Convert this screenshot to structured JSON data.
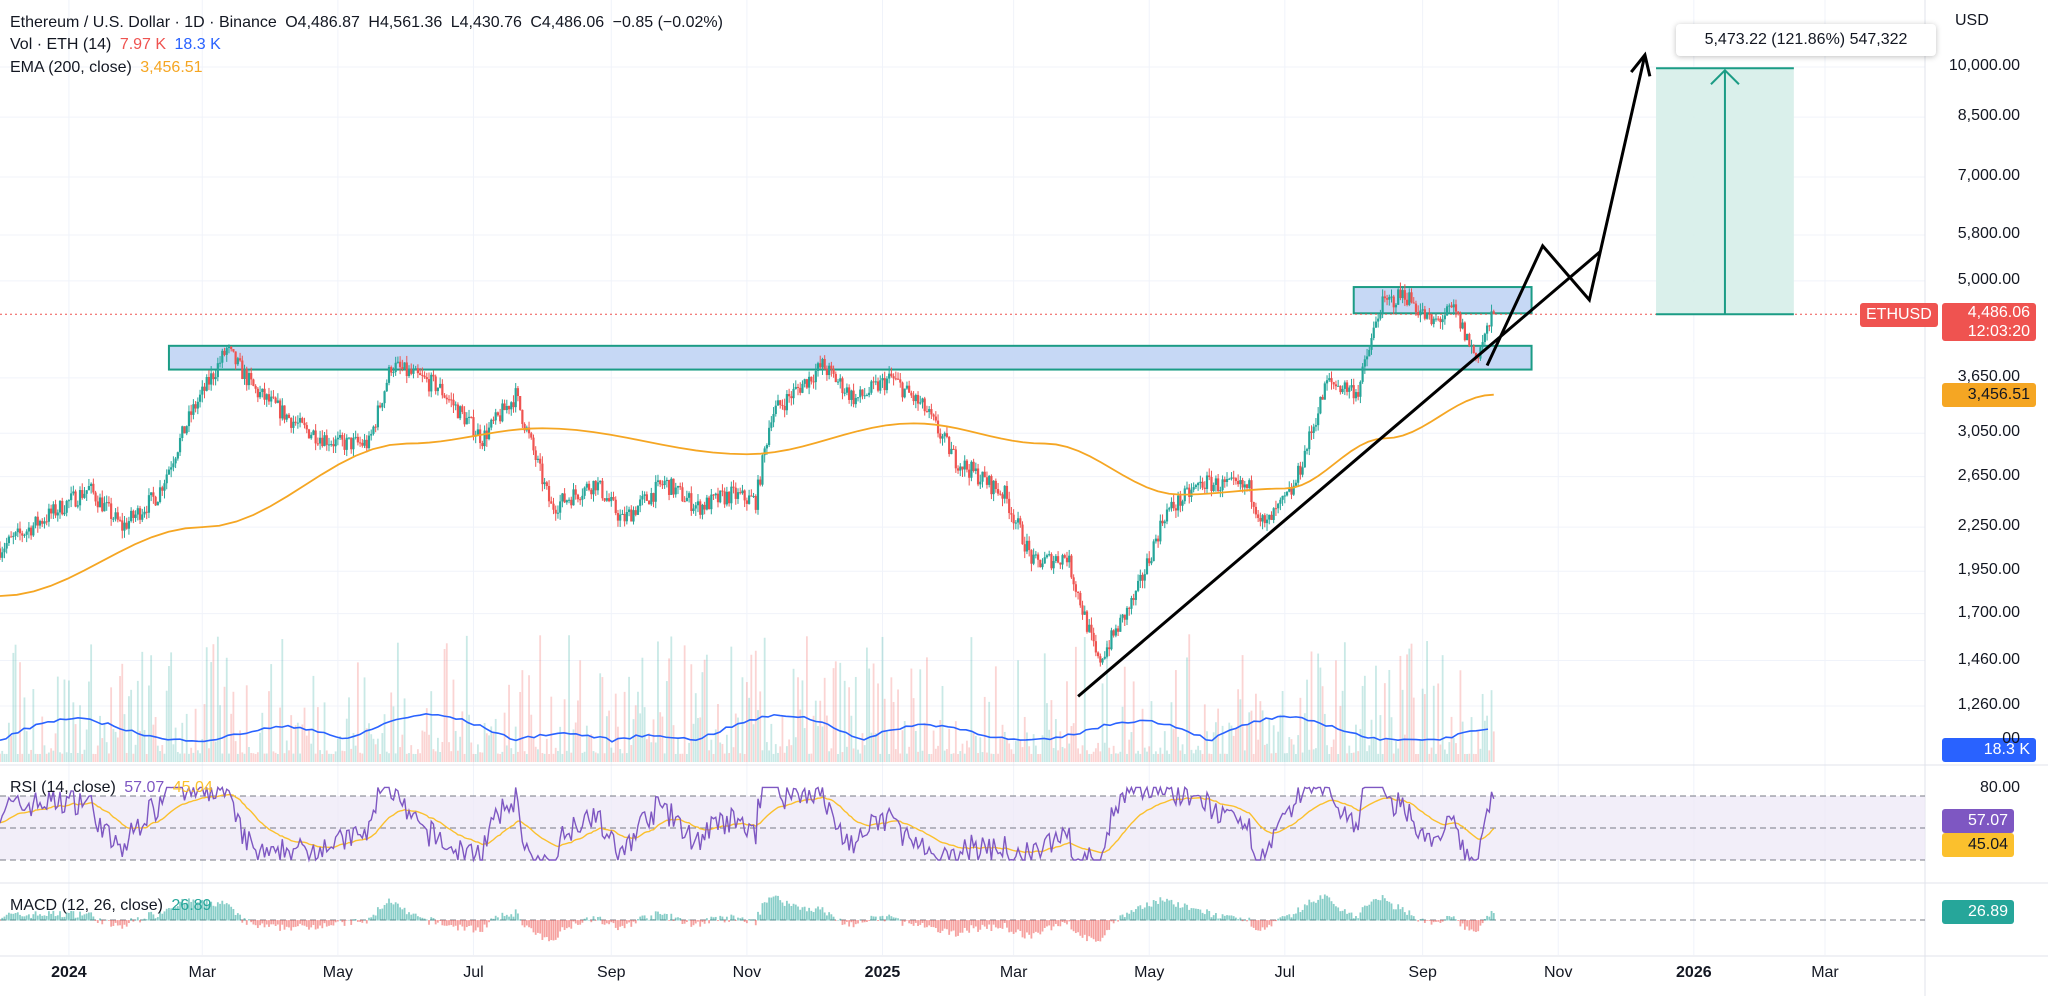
{
  "header": {
    "symbol": "Ethereum / U.S. Dollar · 1D · Binance",
    "open": "O4,486.87",
    "high": "H4,561.36",
    "low": "L4,430.76",
    "close": "C4,486.06",
    "change": "−0.85 (−0.02%)"
  },
  "volume_legend": {
    "label": "Vol · ETH (14)",
    "v1": "7.97 K",
    "v2": "18.3 K"
  },
  "ema_legend": {
    "label": "EMA (200, close)",
    "value": "3,456.51"
  },
  "rsi_legend": {
    "label": "RSI (14, close)",
    "v1": "57.07",
    "v2": "45.04"
  },
  "macd_legend": {
    "label": "MACD (12, 26, close)",
    "value": "26.89"
  },
  "currency": "USD",
  "price_axis": [
    "10,000.00",
    "8,500.00",
    "7,000.00",
    "5,800.00",
    "5,000.00",
    "3,650.00",
    "3,050.00",
    "2,650.00",
    "2,250.00",
    "1,950.00",
    "1,700.00",
    "1,460.00",
    "1,260.00",
    "00"
  ],
  "badges": {
    "ticker": "ETHUSD",
    "price": "4,486.06",
    "countdown": "12:03:20",
    "ema": "3,456.51",
    "volume": "18.3 K",
    "rsi": "57.07",
    "rsi_ma": "45.04",
    "rsi_upper": "80.00",
    "macd": "26.89"
  },
  "measure_label": "5,473.22 (121.86%) 547,322",
  "time_axis": [
    "2024",
    "Mar",
    "May",
    "Jul",
    "Sep",
    "Nov",
    "2025",
    "Mar",
    "May",
    "Jul",
    "Sep",
    "Nov",
    "2026",
    "Mar"
  ],
  "colors": {
    "up": "#26a69a",
    "down": "#ef5350",
    "ema": "#f5a623",
    "volume_ma": "#2962ff",
    "rsi": "#7e57c2",
    "rsi_ma": "#fbc02d",
    "zone_fill": "#c6d8f5",
    "zone_border": "#1b9c85",
    "projection_fill": "#d6eee9"
  },
  "chart_data": {
    "type": "candlestick",
    "title": "Ethereum / U.S. Dollar · 1D · Binance",
    "scale": "log",
    "xlim": [
      "2023-12-01",
      "2026-04-15"
    ],
    "ylim": [
      1150,
      11000
    ],
    "last_close": 4486.06,
    "ema200_last": 3456.51,
    "price_path_approx": [
      {
        "date": "2023-12-01",
        "close": 2100
      },
      {
        "date": "2023-12-15",
        "close": 2250
      },
      {
        "date": "2024-01-10",
        "close": 2550
      },
      {
        "date": "2024-01-25",
        "close": 2250
      },
      {
        "date": "2024-02-10",
        "close": 2500
      },
      {
        "date": "2024-02-25",
        "close": 3250
      },
      {
        "date": "2024-03-12",
        "close": 4000
      },
      {
        "date": "2024-03-25",
        "close": 3500
      },
      {
        "date": "2024-04-15",
        "close": 3100
      },
      {
        "date": "2024-05-01",
        "close": 2950
      },
      {
        "date": "2024-05-15",
        "close": 2950
      },
      {
        "date": "2024-05-25",
        "close": 3800
      },
      {
        "date": "2024-06-15",
        "close": 3550
      },
      {
        "date": "2024-07-05",
        "close": 3000
      },
      {
        "date": "2024-07-20",
        "close": 3450
      },
      {
        "date": "2024-08-05",
        "close": 2400
      },
      {
        "date": "2024-08-25",
        "close": 2600
      },
      {
        "date": "2024-09-06",
        "close": 2300
      },
      {
        "date": "2024-09-25",
        "close": 2600
      },
      {
        "date": "2024-10-10",
        "close": 2400
      },
      {
        "date": "2024-10-25",
        "close": 2500
      },
      {
        "date": "2024-11-05",
        "close": 2450
      },
      {
        "date": "2024-11-12",
        "close": 3250
      },
      {
        "date": "2024-12-05",
        "close": 3800
      },
      {
        "date": "2024-12-20",
        "close": 3400
      },
      {
        "date": "2025-01-05",
        "close": 3650
      },
      {
        "date": "2025-01-20",
        "close": 3300
      },
      {
        "date": "2025-02-03",
        "close": 2800
      },
      {
        "date": "2025-02-25",
        "close": 2500
      },
      {
        "date": "2025-03-10",
        "close": 2000
      },
      {
        "date": "2025-03-25",
        "close": 2050
      },
      {
        "date": "2025-04-08",
        "close": 1450
      },
      {
        "date": "2025-04-25",
        "close": 1800
      },
      {
        "date": "2025-05-08",
        "close": 2350
      },
      {
        "date": "2025-05-25",
        "close": 2600
      },
      {
        "date": "2025-06-15",
        "close": 2550
      },
      {
        "date": "2025-06-22",
        "close": 2250
      },
      {
        "date": "2025-07-05",
        "close": 2550
      },
      {
        "date": "2025-07-20",
        "close": 3600
      },
      {
        "date": "2025-08-03",
        "close": 3500
      },
      {
        "date": "2025-08-13",
        "close": 4600
      },
      {
        "date": "2025-08-24",
        "close": 4800
      },
      {
        "date": "2025-09-05",
        "close": 4350
      },
      {
        "date": "2025-09-15",
        "close": 4550
      },
      {
        "date": "2025-09-25",
        "close": 3900
      },
      {
        "date": "2025-10-03",
        "close": 4486
      }
    ],
    "ema200_approx": [
      {
        "date": "2023-12-01",
        "value": 1800
      },
      {
        "date": "2024-03-01",
        "value": 2250
      },
      {
        "date": "2024-06-01",
        "value": 2950
      },
      {
        "date": "2024-08-01",
        "value": 3100
      },
      {
        "date": "2024-11-01",
        "value": 2850
      },
      {
        "date": "2025-01-15",
        "value": 3150
      },
      {
        "date": "2025-03-15",
        "value": 2950
      },
      {
        "date": "2025-05-15",
        "value": 2500
      },
      {
        "date": "2025-07-01",
        "value": 2550
      },
      {
        "date": "2025-08-15",
        "value": 3000
      },
      {
        "date": "2025-10-03",
        "value": 3456.51
      }
    ],
    "annotations": {
      "resistance_zone": {
        "from": "2024-02-15",
        "to": "2025-10-20",
        "low": 3750,
        "high": 4050
      },
      "upper_zone": {
        "from": "2025-08-01",
        "to": "2025-10-20",
        "low": 4500,
        "high": 4900
      },
      "trendline": [
        {
          "date": "2025-03-30",
          "price": 1300
        },
        {
          "date": "2025-11-20",
          "price": 5500
        }
      ],
      "projection_path": [
        {
          "date": "2025-09-30",
          "price": 3800
        },
        {
          "date": "2025-10-25",
          "price": 5600
        },
        {
          "date": "2025-11-15",
          "price": 4700
        },
        {
          "date": "2025-12-10",
          "price": 10400
        }
      ],
      "target_box": {
        "from": "2025-12-15",
        "to": "2026-02-15",
        "low": 4486,
        "high": 9960,
        "label": "5,473.22 (121.86%) 547,322"
      }
    }
  }
}
